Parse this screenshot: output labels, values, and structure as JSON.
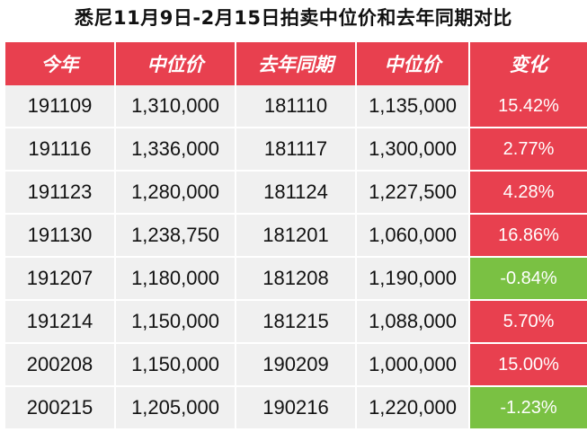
{
  "title": "悉尼11月9日-2月15日拍卖中位价和去年同期对比",
  "table": {
    "headers": [
      "今年",
      "中位价",
      "去年同期",
      "中位价",
      "变化"
    ],
    "rows": [
      {
        "this_year": "191109",
        "median": "1,310,000",
        "last_year": "181110",
        "last_median": "1,135,000",
        "change": "15.42%",
        "trend": "positive"
      },
      {
        "this_year": "191116",
        "median": "1,336,000",
        "last_year": "181117",
        "last_median": "1,300,000",
        "change": "2.77%",
        "trend": "positive"
      },
      {
        "this_year": "191123",
        "median": "1,280,000",
        "last_year": "181124",
        "last_median": "1,227,500",
        "change": "4.28%",
        "trend": "positive"
      },
      {
        "this_year": "191130",
        "median": "1,238,750",
        "last_year": "181201",
        "last_median": "1,060,000",
        "change": "16.86%",
        "trend": "positive"
      },
      {
        "this_year": "191207",
        "median": "1,180,000",
        "last_year": "181208",
        "last_median": "1,190,000",
        "change": "-0.84%",
        "trend": "negative"
      },
      {
        "this_year": "191214",
        "median": "1,150,000",
        "last_year": "181215",
        "last_median": "1,088,000",
        "change": "5.70%",
        "trend": "positive"
      },
      {
        "this_year": "200208",
        "median": "1,150,000",
        "last_year": "190209",
        "last_median": "1,000,000",
        "change": "15.00%",
        "trend": "positive"
      },
      {
        "this_year": "200215",
        "median": "1,205,000",
        "last_year": "190216",
        "last_median": "1,220,000",
        "change": "-1.23%",
        "trend": "negative"
      }
    ]
  },
  "colors": {
    "header_bg": "#e8404f",
    "positive": "#e8404f",
    "negative": "#7ac143",
    "row_bg": "#f0f0f0"
  }
}
